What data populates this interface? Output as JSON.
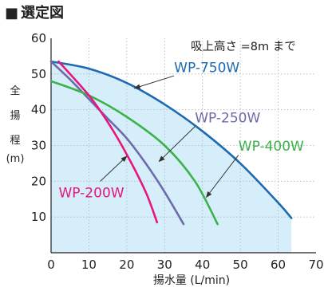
{
  "header": {
    "marker": "■",
    "title": "選定図"
  },
  "chart_data": {
    "type": "line",
    "title": "選定図",
    "xlabel": "揚水量 (L/min)",
    "ylabel": [
      "全",
      "揚",
      "程",
      "(m)"
    ],
    "xlim": [
      0,
      70
    ],
    "ylim": [
      0,
      60
    ],
    "xticks": [
      0,
      10,
      20,
      30,
      40,
      50,
      60,
      70
    ],
    "xtick_labels": [
      "0",
      "10",
      "20",
      "30",
      "40",
      "50",
      "60",
      "70"
    ],
    "yticks": [
      10,
      20,
      30,
      40,
      50,
      60
    ],
    "ytick_labels": [
      "10",
      "20",
      "30",
      "40",
      "50",
      "60"
    ],
    "grid": true,
    "annotation": "吸上高さ =8m まで",
    "shaded_area_series": "WP-750W",
    "shade_color": "#d6eefa",
    "series": [
      {
        "name": "WP-750W",
        "color": "#1e6ab0",
        "points": [
          [
            0,
            53.5
          ],
          [
            10,
            51.5
          ],
          [
            20,
            47.5
          ],
          [
            30,
            41.5
          ],
          [
            40,
            34
          ],
          [
            50,
            25
          ],
          [
            60,
            14
          ],
          [
            63.5,
            9.7
          ]
        ]
      },
      {
        "name": "WP-250W",
        "color": "#6c6aab",
        "points": [
          [
            0,
            53.5
          ],
          [
            5,
            48.5
          ],
          [
            10,
            43
          ],
          [
            15,
            37.5
          ],
          [
            20,
            32
          ],
          [
            25,
            25
          ],
          [
            30,
            17
          ],
          [
            35,
            8
          ]
        ]
      },
      {
        "name": "WP-400W",
        "color": "#3bb34a",
        "points": [
          [
            0,
            48
          ],
          [
            10,
            44
          ],
          [
            20,
            38
          ],
          [
            30,
            30
          ],
          [
            38,
            20
          ],
          [
            44,
            8
          ]
        ]
      },
      {
        "name": "WP-200W",
        "color": "#e5177e",
        "points": [
          [
            2,
            53.5
          ],
          [
            10,
            44
          ],
          [
            15,
            36.5
          ],
          [
            20,
            27.5
          ],
          [
            25,
            17
          ],
          [
            28,
            8.5
          ]
        ]
      }
    ],
    "series_labels": [
      {
        "name": "WP-750W",
        "color": "#1e6ab0",
        "text_at": [
          32.5,
          50.5
        ],
        "arrow_from": [
          32.5,
          49.5
        ],
        "arrow_to": [
          22,
          46
        ]
      },
      {
        "name": "WP-250W",
        "color": "#6c6aab",
        "text_at": [
          38,
          36.5
        ],
        "arrow_from": [
          38,
          35.3
        ],
        "arrow_to": [
          28.5,
          25.5
        ]
      },
      {
        "name": "WP-400W",
        "color": "#3bb34a",
        "text_at": [
          49.5,
          28.5
        ],
        "arrow_from": [
          49.5,
          27.3
        ],
        "arrow_to": [
          41,
          15.5
        ]
      },
      {
        "name": "WP-200W",
        "color": "#e5177e",
        "text_at": [
          2,
          15.5
        ],
        "arrow_from": [
          13,
          20
        ],
        "arrow_to": [
          20,
          27
        ]
      }
    ]
  }
}
